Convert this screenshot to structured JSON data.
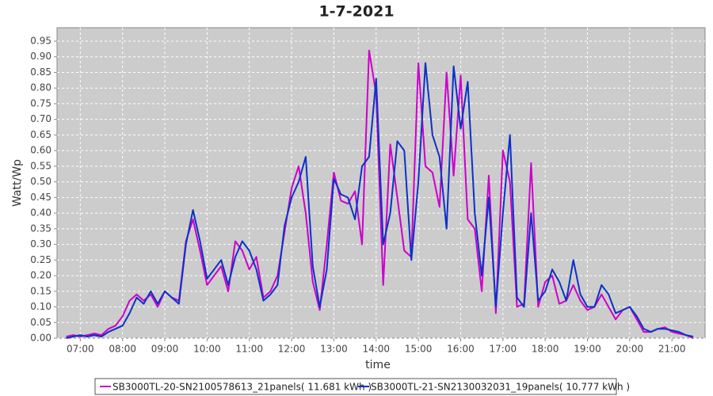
{
  "chart_data": {
    "type": "line",
    "title": "1-7-2021",
    "xlabel": "time",
    "ylabel": "Watt/Wp",
    "x": [
      "06:40",
      "06:50",
      "07:00",
      "07:10",
      "07:20",
      "07:30",
      "07:40",
      "07:50",
      "08:00",
      "08:10",
      "08:20",
      "08:30",
      "08:40",
      "08:50",
      "09:00",
      "09:10",
      "09:20",
      "09:30",
      "09:40",
      "09:50",
      "10:00",
      "10:10",
      "10:20",
      "10:30",
      "10:40",
      "10:50",
      "11:00",
      "11:10",
      "11:20",
      "11:30",
      "11:40",
      "11:50",
      "12:00",
      "12:10",
      "12:20",
      "12:30",
      "12:40",
      "12:50",
      "13:00",
      "13:10",
      "13:20",
      "13:30",
      "13:40",
      "13:50",
      "14:00",
      "14:10",
      "14:20",
      "14:30",
      "14:40",
      "14:50",
      "15:00",
      "15:10",
      "15:20",
      "15:30",
      "15:40",
      "15:50",
      "16:00",
      "16:10",
      "16:20",
      "16:30",
      "16:40",
      "16:50",
      "17:00",
      "17:10",
      "17:20",
      "17:30",
      "17:40",
      "17:50",
      "18:00",
      "18:10",
      "18:20",
      "18:30",
      "18:40",
      "18:50",
      "19:00",
      "19:10",
      "19:20",
      "19:30",
      "19:40",
      "19:50",
      "20:00",
      "20:10",
      "20:20",
      "20:30",
      "20:40",
      "20:50",
      "21:00",
      "21:10",
      "21:20",
      "21:30"
    ],
    "series": [
      {
        "name": "SB3000TL-20-SN2100578613_21panels( 11.681 kWh )",
        "color": "#cc00cc",
        "values": [
          0.005,
          0.01,
          0.005,
          0.01,
          0.015,
          0.01,
          0.03,
          0.04,
          0.07,
          0.12,
          0.14,
          0.12,
          0.14,
          0.1,
          0.15,
          0.13,
          0.12,
          0.31,
          0.38,
          0.28,
          0.17,
          0.2,
          0.23,
          0.15,
          0.31,
          0.28,
          0.22,
          0.26,
          0.13,
          0.15,
          0.2,
          0.34,
          0.48,
          0.55,
          0.4,
          0.18,
          0.09,
          0.3,
          0.53,
          0.44,
          0.43,
          0.47,
          0.3,
          0.92,
          0.78,
          0.17,
          0.62,
          0.45,
          0.28,
          0.26,
          0.88,
          0.55,
          0.53,
          0.42,
          0.85,
          0.52,
          0.84,
          0.38,
          0.35,
          0.15,
          0.52,
          0.08,
          0.6,
          0.5,
          0.1,
          0.11,
          0.56,
          0.1,
          0.18,
          0.2,
          0.11,
          0.12,
          0.17,
          0.12,
          0.09,
          0.1,
          0.14,
          0.1,
          0.06,
          0.09,
          0.1,
          0.06,
          0.02,
          0.02,
          0.03,
          0.035,
          0.02,
          0.015,
          0.01,
          0
        ]
      },
      {
        "name": "SB3000TL-21-SN2130032031_19panels( 10.777 kWh )",
        "color": "#0a32c8",
        "values": [
          0,
          0.005,
          0.01,
          0.005,
          0.01,
          0.005,
          0.02,
          0.03,
          0.04,
          0.08,
          0.13,
          0.11,
          0.15,
          0.11,
          0.15,
          0.13,
          0.11,
          0.3,
          0.41,
          0.31,
          0.19,
          0.22,
          0.25,
          0.17,
          0.26,
          0.31,
          0.28,
          0.22,
          0.12,
          0.14,
          0.17,
          0.36,
          0.45,
          0.5,
          0.58,
          0.23,
          0.1,
          0.22,
          0.51,
          0.46,
          0.45,
          0.38,
          0.55,
          0.58,
          0.83,
          0.3,
          0.4,
          0.63,
          0.6,
          0.25,
          0.5,
          0.88,
          0.65,
          0.58,
          0.35,
          0.87,
          0.67,
          0.82,
          0.4,
          0.2,
          0.45,
          0.1,
          0.4,
          0.65,
          0.13,
          0.1,
          0.4,
          0.12,
          0.15,
          0.22,
          0.18,
          0.12,
          0.25,
          0.14,
          0.1,
          0.1,
          0.17,
          0.14,
          0.08,
          0.09,
          0.1,
          0.07,
          0.03,
          0.02,
          0.03,
          0.03,
          0.025,
          0.02,
          0.01,
          0.005
        ]
      }
    ],
    "xlim": [
      "06:27",
      "21:47"
    ],
    "xticks": [
      "07:00",
      "08:00",
      "09:00",
      "10:00",
      "11:00",
      "12:00",
      "13:00",
      "14:00",
      "15:00",
      "16:00",
      "17:00",
      "18:00",
      "19:00",
      "20:00",
      "21:00"
    ],
    "ylim": [
      0,
      0.993
    ],
    "yticks": [
      {
        "value": 0,
        "label": "0.00"
      },
      {
        "value": 0.05,
        "label": "0.05"
      },
      {
        "value": 0.1,
        "label": "0.10"
      },
      {
        "value": 0.15,
        "label": "0.15"
      },
      {
        "value": 0.2,
        "label": "0.20"
      },
      {
        "value": 0.25,
        "label": "0.25"
      },
      {
        "value": 0.3,
        "label": "0.30"
      },
      {
        "value": 0.35,
        "label": "0.35"
      },
      {
        "value": 0.4,
        "label": "0.40"
      },
      {
        "value": 0.45,
        "label": "0.45"
      },
      {
        "value": 0.5,
        "label": "0.50"
      },
      {
        "value": 0.55,
        "label": "0.55"
      },
      {
        "value": 0.6,
        "label": "0.60"
      },
      {
        "value": 0.65,
        "label": "0.65"
      },
      {
        "value": 0.7,
        "label": "0.70"
      },
      {
        "value": 0.75,
        "label": "0.75"
      },
      {
        "value": 0.8,
        "label": "0.80"
      },
      {
        "value": 0.85,
        "label": "0.85"
      },
      {
        "value": 0.9,
        "label": "0.90"
      },
      {
        "value": 0.95,
        "label": "0.95"
      }
    ],
    "grid": true,
    "legend": "bottom"
  }
}
